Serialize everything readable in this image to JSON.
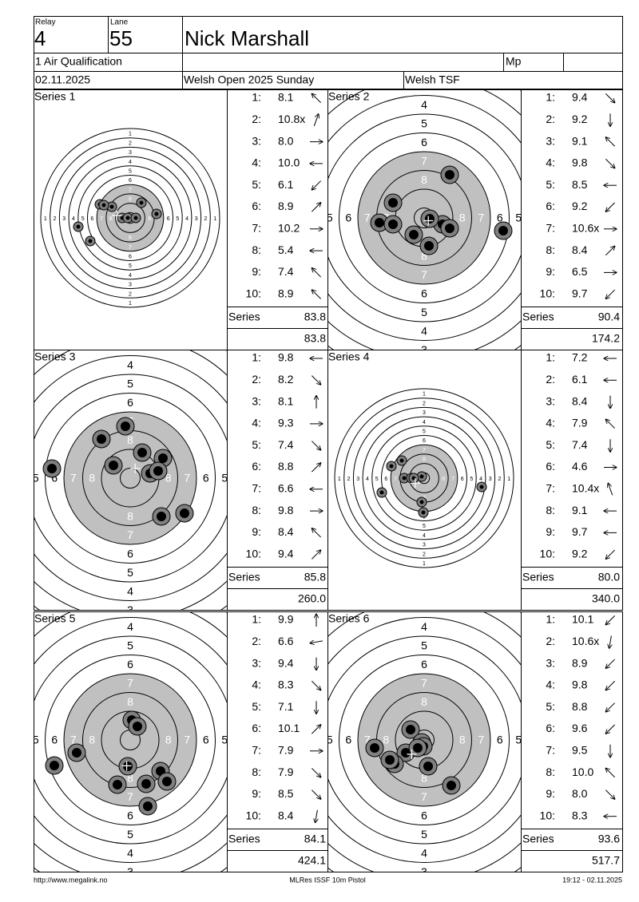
{
  "header": {
    "relay_label": "Relay",
    "relay": "4",
    "lane_label": "Lane",
    "lane": "55",
    "name": "Nick Marshall",
    "event": "1 Air Qualification",
    "mp": "Mp",
    "date": "02.11.2025",
    "competition": "Welsh Open 2025 Sunday",
    "organizer": "Welsh TSF"
  },
  "ring_labels": [
    "1",
    "2",
    "3",
    "4",
    "5",
    "6",
    "7",
    "8"
  ],
  "series": [
    {
      "title": "Series 1",
      "shots": [
        {
          "n": "1:",
          "score": "8.1"
        },
        {
          "n": "2:",
          "score": "10.8x"
        },
        {
          "n": "3:",
          "score": "8.0"
        },
        {
          "n": "4:",
          "score": "10.0"
        },
        {
          "n": "5:",
          "score": "6.1"
        },
        {
          "n": "6:",
          "score": "8.9"
        },
        {
          "n": "7:",
          "score": "10.2"
        },
        {
          "n": "8:",
          "score": "5.4"
        },
        {
          "n": "9:",
          "score": "7.4"
        },
        {
          "n": "10:",
          "score": "8.9"
        }
      ],
      "series_label": "Series",
      "series_total": "83.8",
      "running_total": "83.8"
    },
    {
      "title": "Series 2",
      "shots": [
        {
          "n": "1:",
          "score": "9.4"
        },
        {
          "n": "2:",
          "score": "9.2"
        },
        {
          "n": "3:",
          "score": "9.1"
        },
        {
          "n": "4:",
          "score": "9.8"
        },
        {
          "n": "5:",
          "score": "8.5"
        },
        {
          "n": "6:",
          "score": "9.2"
        },
        {
          "n": "7:",
          "score": "10.6x"
        },
        {
          "n": "8:",
          "score": "8.4"
        },
        {
          "n": "9:",
          "score": "6.5"
        },
        {
          "n": "10:",
          "score": "9.7"
        }
      ],
      "series_label": "Series",
      "series_total": "90.4",
      "running_total": "174.2"
    },
    {
      "title": "Series 3",
      "shots": [
        {
          "n": "1:",
          "score": "9.8"
        },
        {
          "n": "2:",
          "score": "8.2"
        },
        {
          "n": "3:",
          "score": "8.1"
        },
        {
          "n": "4:",
          "score": "9.3"
        },
        {
          "n": "5:",
          "score": "7.4"
        },
        {
          "n": "6:",
          "score": "8.8"
        },
        {
          "n": "7:",
          "score": "6.6"
        },
        {
          "n": "8:",
          "score": "9.8"
        },
        {
          "n": "9:",
          "score": "8.4"
        },
        {
          "n": "10:",
          "score": "9.4"
        }
      ],
      "series_label": "Series",
      "series_total": "85.8",
      "running_total": "260.0"
    },
    {
      "title": "Series 4",
      "shots": [
        {
          "n": "1:",
          "score": "7.2"
        },
        {
          "n": "2:",
          "score": "6.1"
        },
        {
          "n": "3:",
          "score": "8.4"
        },
        {
          "n": "4:",
          "score": "7.9"
        },
        {
          "n": "5:",
          "score": "7.4"
        },
        {
          "n": "6:",
          "score": "4.6"
        },
        {
          "n": "7:",
          "score": "10.4x"
        },
        {
          "n": "8:",
          "score": "9.1"
        },
        {
          "n": "9:",
          "score": "9.7"
        },
        {
          "n": "10:",
          "score": "9.2"
        }
      ],
      "series_label": "Series",
      "series_total": "80.0",
      "running_total": "340.0"
    },
    {
      "title": "Series 5",
      "shots": [
        {
          "n": "1:",
          "score": "9.9"
        },
        {
          "n": "2:",
          "score": "6.6"
        },
        {
          "n": "3:",
          "score": "9.4"
        },
        {
          "n": "4:",
          "score": "8.3"
        },
        {
          "n": "5:",
          "score": "7.1"
        },
        {
          "n": "6:",
          "score": "10.1"
        },
        {
          "n": "7:",
          "score": "7.9"
        },
        {
          "n": "8:",
          "score": "7.9"
        },
        {
          "n": "9:",
          "score": "8.5"
        },
        {
          "n": "10:",
          "score": "8.4"
        }
      ],
      "series_label": "Series",
      "series_total": "84.1",
      "running_total": "424.1"
    },
    {
      "title": "Series 6",
      "shots": [
        {
          "n": "1:",
          "score": "10.1"
        },
        {
          "n": "2:",
          "score": "10.6x"
        },
        {
          "n": "3:",
          "score": "8.9"
        },
        {
          "n": "4:",
          "score": "9.8"
        },
        {
          "n": "5:",
          "score": "8.8"
        },
        {
          "n": "6:",
          "score": "9.6"
        },
        {
          "n": "7:",
          "score": "9.5"
        },
        {
          "n": "8:",
          "score": "10.0"
        },
        {
          "n": "9:",
          "score": "8.0"
        },
        {
          "n": "10:",
          "score": "8.3"
        }
      ],
      "series_label": "Series",
      "series_total": "93.6",
      "running_total": "517.7"
    }
  ],
  "footer": {
    "url": "http://www.megalink.no",
    "software": "MLRes ISSF 10m Pistol",
    "timestamp": "19:12 - 02.11.2025"
  }
}
